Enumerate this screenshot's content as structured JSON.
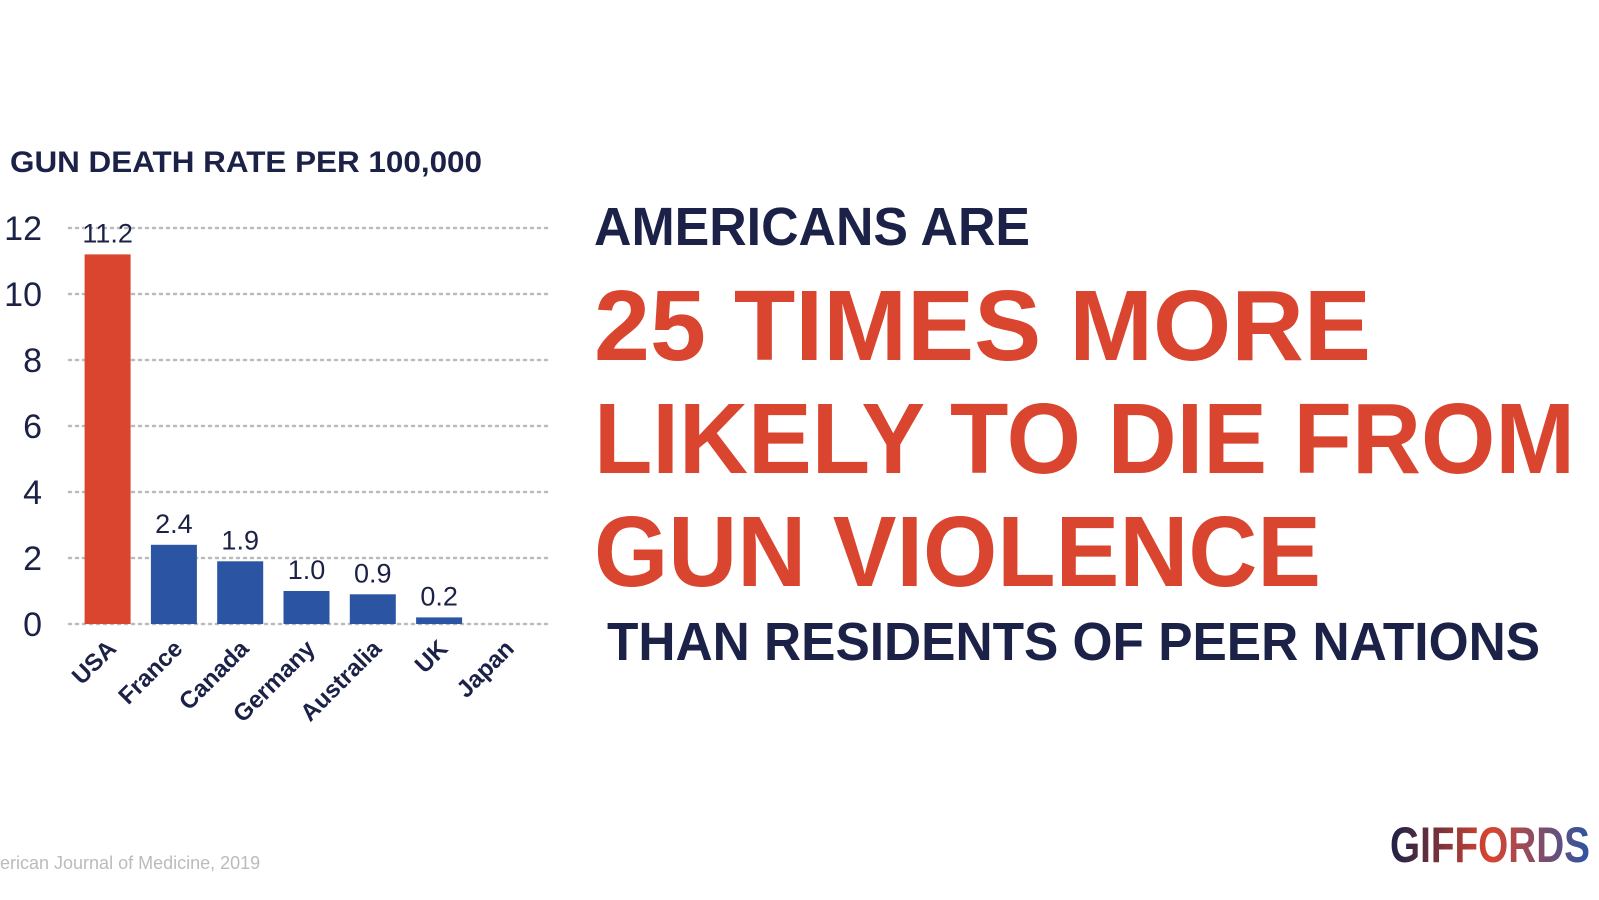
{
  "chart_data": {
    "type": "bar",
    "title": "GUN DEATH RATE PER 100,000",
    "categories": [
      "USA",
      "France",
      "Canada",
      "Germany",
      "Australia",
      "UK",
      "Japan"
    ],
    "values": [
      11.2,
      2.4,
      1.9,
      1.0,
      0.9,
      0.2,
      0
    ],
    "value_labels": [
      "11.2",
      "2.4",
      "1.9",
      "1.0",
      "0.9",
      "0.2",
      null
    ],
    "colors": [
      "#d9452f",
      "#2b55a3",
      "#2b55a3",
      "#2b55a3",
      "#2b55a3",
      "#2b55a3",
      "#2b55a3"
    ],
    "ylim": [
      0,
      12
    ],
    "yticks": [
      0,
      2,
      4,
      6,
      8,
      10,
      12
    ],
    "grid": true
  },
  "headline": {
    "intro": "AMERICANS ARE",
    "lines": [
      "25 TIMES MORE",
      "LIKELY TO DIE FROM",
      "GUN VIOLENCE"
    ],
    "outro": "THAN RESIDENTS OF PEER NATIONS"
  },
  "source": "erican Journal of Medicine, 2019",
  "logo": "GIFFORDS"
}
